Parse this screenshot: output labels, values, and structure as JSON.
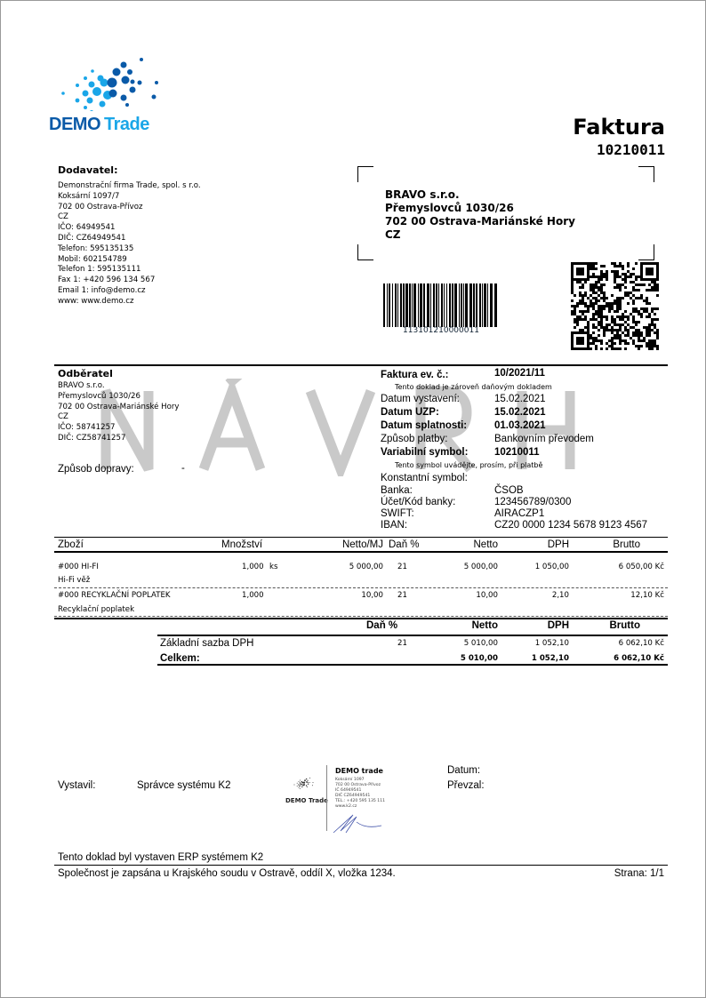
{
  "logo": {
    "brand1": "DEMO",
    "brand2": "Trade",
    "color1": "#0a5aa8",
    "color2": "#1aa6e8"
  },
  "doc": {
    "title": "Faktura",
    "number": "10210011",
    "watermark": [
      "N",
      "Á",
      "V",
      "R",
      "H"
    ]
  },
  "supplier": {
    "heading": "Dodavatel:",
    "lines": [
      "Demonstrační firma Trade, spol. s r.o.",
      "Koksární 1097/7",
      "702 00 Ostrava-Přívoz",
      "CZ",
      "IČO: 64949541",
      "DIČ: CZ64949541",
      "Telefon: 595135135",
      "Mobil: 602154789",
      "Telefon 1: 595135111",
      "Fax 1: +420 596 134 567",
      "Email 1: info@demo.cz",
      "www: www.demo.cz"
    ]
  },
  "address": {
    "lines": [
      "BRAVO s.r.o.",
      "Přemyslovců 1030/26",
      "702 00 Ostrava-Mariánské Hory",
      "CZ"
    ]
  },
  "barcode": {
    "value": "113101210000011"
  },
  "customer": {
    "heading": "Odběratel",
    "lines": [
      "BRAVO s.r.o.",
      "Přemyslovců 1030/26",
      "702 00 Ostrava-Mariánské Hory",
      "CZ",
      "IČO: 58741257",
      "DIČ: CZ58741257"
    ],
    "shipping_label": "Způsob dopravy:",
    "shipping_value": "-"
  },
  "info": {
    "ev_label": "Faktura ev. č.:",
    "ev_value": "10/2021/11",
    "tax_note": "Tento doklad je zároveň daňovým dokladem",
    "rows": [
      {
        "label": "Datum vystavení:",
        "value": "15.02.2021"
      },
      {
        "label": "Datum UZP:",
        "value": "15.02.2021"
      },
      {
        "label": "Datum splatnosti:",
        "value": "01.03.2021"
      },
      {
        "label": "Způsob platby:",
        "value": "Bankovním převodem"
      },
      {
        "label": "Variabilní symbol:",
        "value": "10210011"
      }
    ],
    "vs_note": "Tento symbol uvádějte, prosím, při platbě",
    "bank_rows": [
      {
        "label": "Konstantní symbol:",
        "value": ""
      },
      {
        "label": "Banka:",
        "value": "ČSOB"
      },
      {
        "label": "Účet/Kód banky:",
        "value": "123456789/0300"
      },
      {
        "label": "SWIFT:",
        "value": "AIRACZP1"
      },
      {
        "label": "IBAN:",
        "value": "CZ20 0000 1234 5678 9123 4567"
      }
    ]
  },
  "items": {
    "headers": [
      "Zboží",
      "Množství",
      "Netto/MJ",
      "Daň %",
      "Netto",
      "DPH",
      "Brutto"
    ],
    "rows": [
      {
        "name": "#000 HI-FI",
        "desc": "Hi-Fi věž",
        "qty": "1,000",
        "unit": "ks",
        "unit_price": "5 000,00",
        "vat": "21",
        "net": "5 000,00",
        "dph": "1 050,00",
        "gross": "6 050,00 Kč"
      },
      {
        "name": "#000 RECYKLAČNÍ POPLATEK",
        "desc": "Recyklační poplatek",
        "qty": "1,000",
        "unit": "",
        "unit_price": "10,00",
        "vat": "21",
        "net": "10,00",
        "dph": "2,10",
        "gross": "12,10 Kč"
      }
    ]
  },
  "summary": {
    "headers": [
      "Daň %",
      "Netto",
      "DPH",
      "Brutto"
    ],
    "rate_row": {
      "label": "Základní sazba DPH",
      "vat": "21",
      "net": "5 010,00",
      "dph": "1 052,10",
      "gross": "6 062,10 Kč"
    },
    "total_row": {
      "label": "Celkem:",
      "net": "5 010,00",
      "dph": "1 052,10",
      "gross": "6 062,10 Kč"
    }
  },
  "signature": {
    "issued_label": "Vystavil:",
    "issued_by": "Správce systému K2",
    "date_label": "Datum:",
    "received_label": "Převzal:",
    "stamp": {
      "logo": "DEMO Trade",
      "title": "DEMO trade",
      "lines": [
        "Koksární 1097",
        "702 00 Ostrava-Přívoz",
        "IČ 64949541",
        "DIČ CZ64949541",
        "TEL.: +420 595 135 111",
        "www.k2.cz"
      ]
    }
  },
  "footer": {
    "erp_note": "Tento doklad byl vystaven ERP systémem K2",
    "registry": "Společnost je zapsána u Krajského soudu v Ostravě, oddíl X, vložka 1234.",
    "page": "Strana: 1/1"
  }
}
